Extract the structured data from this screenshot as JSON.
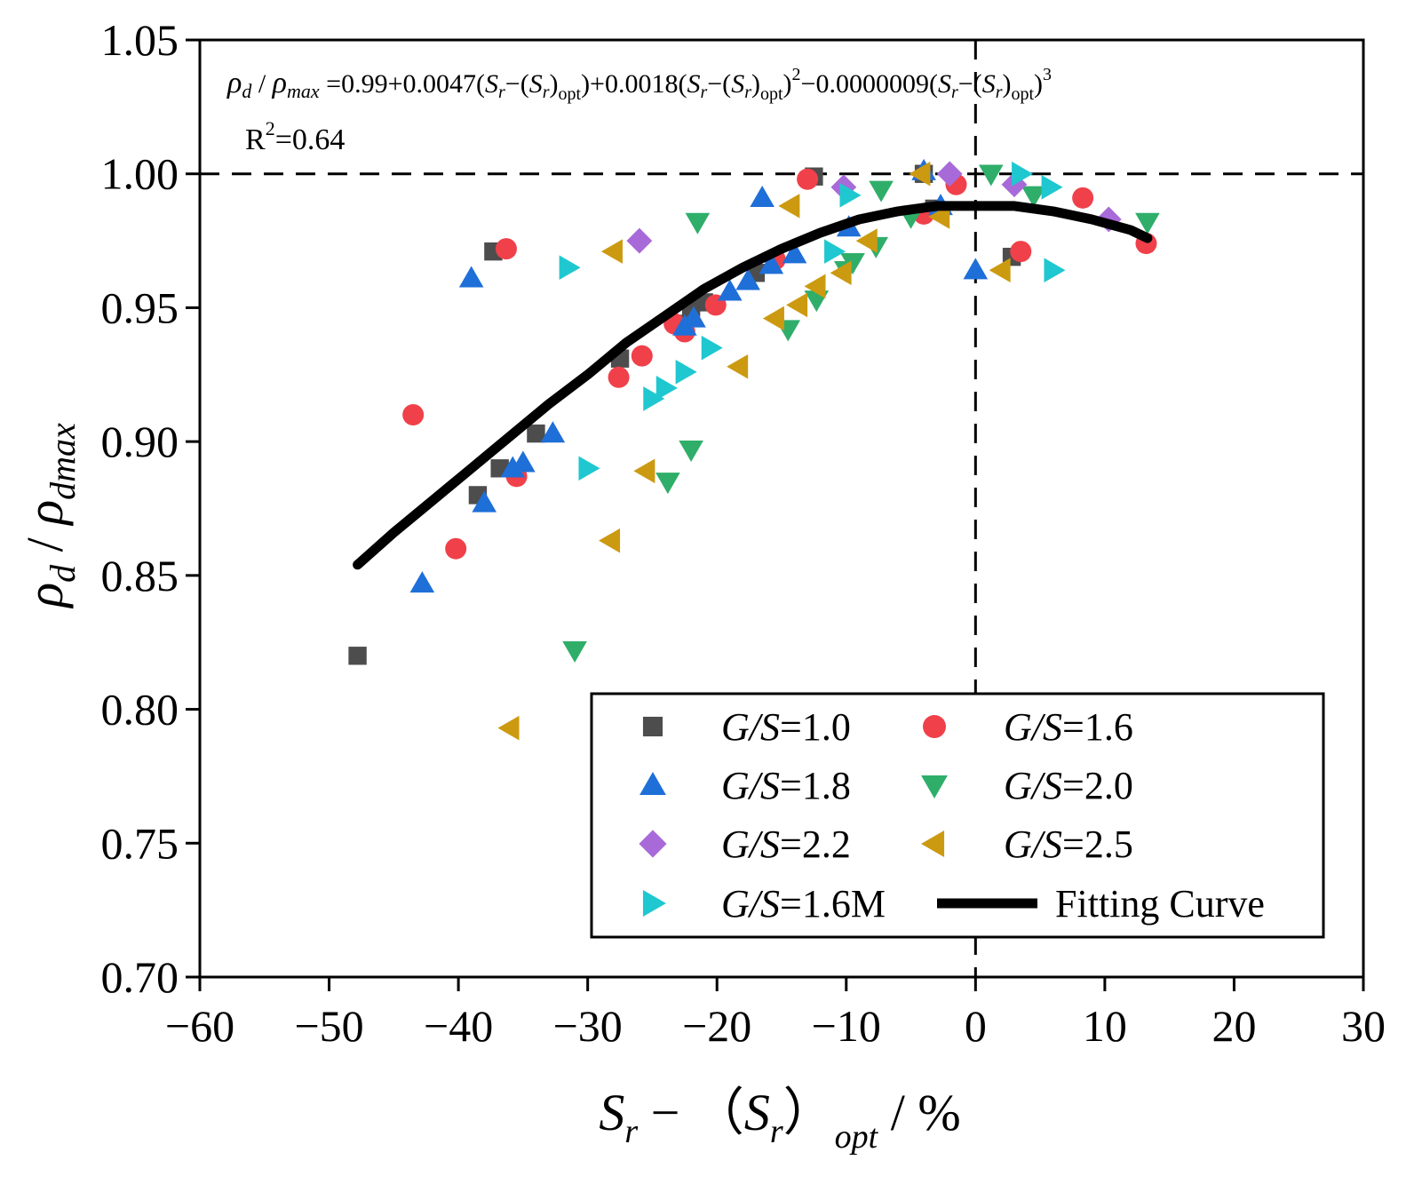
{
  "chart_data": {
    "type": "scatter",
    "title": "",
    "equation": {
      "lhs_sym1": "ρ",
      "lhs_sub1": "d",
      "lhs_slash": " / ",
      "lhs_sym2": "ρ",
      "lhs_sub2": "max",
      "rhs_a": " =0.99+0.0047(",
      "t1_S": "S",
      "t1_r": "r",
      "t1_minus": "−(",
      "t1_S2": "S",
      "t1_r2": "r",
      "t1_close": ")",
      "t1_opt": "opt",
      "rhs_b": ")+0.0018(",
      "t2_S": "S",
      "t2_r": "r",
      "t2_minus": "−(",
      "t2_S2": "S",
      "t2_r2": "r",
      "t2_close": ")",
      "t2_opt": "opt",
      "t2_paren": ")",
      "t2_pow": "2",
      "rhs_c": "−0.0000009(",
      "t3_S": "S",
      "t3_r": "r",
      "t3_minus": "−(",
      "t3_S2": "S",
      "t3_r2": "r",
      "t3_close": ")",
      "t3_opt": "opt",
      "t3_paren": ")",
      "t3_pow": "3"
    },
    "r_squared": {
      "R": "R",
      "pow": "2",
      "value": "=0.64"
    },
    "xlabel": {
      "S": "S",
      "r": "r",
      "mid": " − （",
      "S2": "S",
      "r2": "r",
      "close": "）",
      "opt": "opt",
      "unit": " / %"
    },
    "ylabel": {
      "rho1": "ρ",
      "sub1": "d",
      "slash": " / ",
      "rho2": "ρ",
      "sub2": "dmax"
    },
    "xlim": [
      -60,
      30
    ],
    "ylim": [
      0.7,
      1.05
    ],
    "xticks": [
      -60,
      -50,
      -40,
      -30,
      -20,
      -10,
      0,
      10,
      20,
      30
    ],
    "xtick_labels": [
      "−60",
      "−50",
      "−40",
      "−30",
      "−20",
      "−10",
      "0",
      "10",
      "20",
      "30"
    ],
    "yticks": [
      0.7,
      0.75,
      0.8,
      0.85,
      0.9,
      0.95,
      1.0,
      1.05
    ],
    "ytick_labels": [
      "0.70",
      "0.75",
      "0.80",
      "0.85",
      "0.90",
      "0.95",
      "1.00",
      "1.05"
    ],
    "reference_lines": {
      "x": 0,
      "y": 1.0,
      "style": "dashed"
    },
    "legend_position": "bottom-right",
    "series": [
      {
        "name": "G/S=1.0",
        "label_italic": "G/S",
        "label_rest": "=1.0",
        "marker": "square",
        "color": "#4d4d4d",
        "x": [
          -47.8,
          -38.5,
          -37.3,
          -36.8,
          -34.0,
          -27.5,
          -23.0,
          -22.0,
          -21.0,
          -17.0,
          -12.5,
          -4.0,
          -3.2,
          2.8
        ],
        "y": [
          0.82,
          0.88,
          0.971,
          0.89,
          0.903,
          0.931,
          0.944,
          0.95,
          0.952,
          0.963,
          0.999,
          1.0,
          0.987,
          0.969
        ]
      },
      {
        "name": "G/S=1.6",
        "label_italic": "G/S",
        "label_rest": "=1.6",
        "marker": "circle",
        "color": "#f0404a",
        "x": [
          -43.5,
          -40.2,
          -36.3,
          -35.5,
          -27.6,
          -25.8,
          -23.3,
          -22.5,
          -20.1,
          -15.5,
          -13.0,
          -4.0,
          -1.5,
          3.5,
          8.3,
          13.2
        ],
        "y": [
          0.91,
          0.86,
          0.972,
          0.887,
          0.924,
          0.932,
          0.944,
          0.941,
          0.951,
          0.968,
          0.998,
          0.985,
          0.996,
          0.971,
          0.991,
          0.974
        ]
      },
      {
        "name": "G/S=1.8",
        "label_italic": "G/S",
        "label_rest": "=1.8",
        "marker": "triangle-up",
        "color": "#1f6fd8",
        "x": [
          -42.8,
          -39.0,
          -38.0,
          -35.8,
          -35.0,
          -32.7,
          -22.5,
          -21.8,
          -19.0,
          -17.6,
          -16.5,
          -15.8,
          -14.0,
          -9.8,
          -4.0,
          -2.7,
          0.0
        ],
        "y": [
          0.847,
          0.961,
          0.877,
          0.89,
          0.892,
          0.903,
          0.943,
          0.946,
          0.956,
          0.96,
          0.991,
          0.966,
          0.97,
          0.98,
          1.001,
          0.988,
          0.964
        ]
      },
      {
        "name": "G/S=2.0",
        "label_italic": "G/S",
        "label_rest": "=2.0",
        "marker": "triangle-down",
        "color": "#2fae6a",
        "x": [
          -31.0,
          -23.8,
          -22.0,
          -21.5,
          -14.5,
          -12.3,
          -10.0,
          -9.5,
          -7.7,
          -7.3,
          -5.0,
          1.2,
          4.5,
          13.3
        ],
        "y": [
          0.822,
          0.885,
          0.897,
          0.982,
          0.942,
          0.953,
          0.964,
          0.967,
          0.973,
          0.994,
          0.984,
          1.0,
          0.992,
          0.982
        ]
      },
      {
        "name": "G/S=2.2",
        "label_italic": "G/S",
        "label_rest": "=2.2",
        "marker": "diamond",
        "color": "#a86ad8",
        "x": [
          -26.0,
          -10.2,
          -2.0,
          3.0,
          10.3
        ],
        "y": [
          0.975,
          0.995,
          1.0,
          0.996,
          0.983
        ]
      },
      {
        "name": "G/S=2.5",
        "label_italic": "G/S",
        "label_rest": "=2.5",
        "marker": "triangle-left",
        "color": "#cc9a10",
        "x": [
          -36.0,
          -28.2,
          -28.0,
          -25.5,
          -18.3,
          -15.5,
          -14.3,
          -13.7,
          -12.3,
          -10.3,
          -8.3,
          -4.2,
          -2.7,
          2.0
        ],
        "y": [
          0.793,
          0.863,
          0.971,
          0.889,
          0.928,
          0.946,
          0.988,
          0.951,
          0.958,
          0.963,
          0.975,
          1.0,
          0.984,
          0.964
        ]
      },
      {
        "name": "G/S=1.6M",
        "label_italic": "G/S",
        "label_rest": "=1.6M",
        "marker": "triangle-right",
        "color": "#1fc8d0",
        "x": [
          -31.5,
          -30.0,
          -25.0,
          -24.0,
          -22.5,
          -20.5,
          -11.0,
          -9.8,
          3.5,
          5.8,
          6.0
        ],
        "y": [
          0.965,
          0.89,
          0.916,
          0.92,
          0.926,
          0.935,
          0.971,
          0.992,
          1.0,
          0.995,
          0.964
        ]
      }
    ],
    "fit": {
      "name": "Fitting Curve",
      "color": "#000000",
      "x": [
        -47.8,
        -45,
        -42,
        -39,
        -36,
        -33,
        -30,
        -27,
        -24,
        -21,
        -18,
        -15,
        -12,
        -9,
        -6,
        -3,
        0,
        3,
        6,
        9,
        12,
        13.3
      ],
      "y": [
        0.854,
        0.866,
        0.878,
        0.89,
        0.902,
        0.914,
        0.925,
        0.937,
        0.947,
        0.957,
        0.965,
        0.972,
        0.978,
        0.983,
        0.986,
        0.988,
        0.988,
        0.988,
        0.986,
        0.983,
        0.979,
        0.976
      ]
    }
  }
}
